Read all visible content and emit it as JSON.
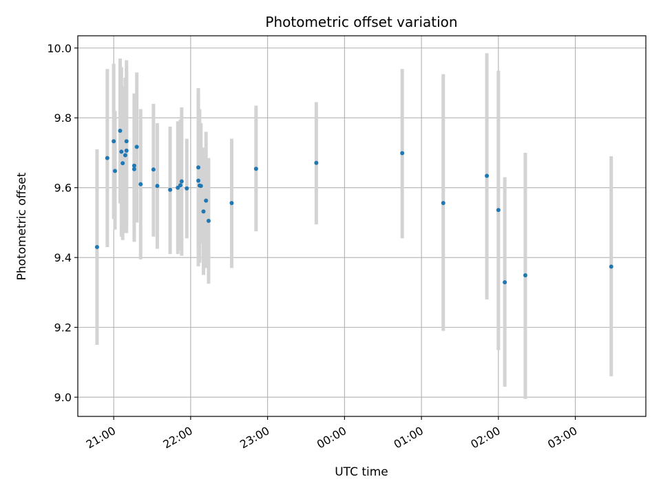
{
  "chart_data": {
    "type": "scatter",
    "title": "Photometric offset variation",
    "xlabel": "UTC time",
    "ylabel": "Photometric offset",
    "x_axis_type": "time",
    "xlim": [
      "20:32",
      "03:55"
    ],
    "ylim": [
      8.945,
      10.035
    ],
    "x_ticks": [
      "21:00",
      "22:00",
      "23:00",
      "00:00",
      "01:00",
      "02:00",
      "03:00"
    ],
    "y_ticks": [
      9.0,
      9.2,
      9.4,
      9.6,
      9.8,
      10.0
    ],
    "y_tick_labels": [
      "9.0",
      "9.2",
      "9.4",
      "9.6",
      "9.8",
      "10.0"
    ],
    "grid": true,
    "errorbars": true,
    "marker_color": "#1f77b4",
    "errorbar_color": "#d3d3d3",
    "series": [
      {
        "points": [
          {
            "x": "20:47",
            "y": 9.43,
            "ylow": 9.15,
            "yhigh": 9.71
          },
          {
            "x": "20:55",
            "y": 9.685,
            "ylow": 9.43,
            "yhigh": 9.94
          },
          {
            "x": "21:00",
            "y": 9.733,
            "ylow": 9.51,
            "yhigh": 9.955
          },
          {
            "x": "21:01",
            "y": 9.648,
            "ylow": 9.48,
            "yhigh": 9.82
          },
          {
            "x": "21:05",
            "y": 9.763,
            "ylow": 9.555,
            "yhigh": 9.97
          },
          {
            "x": "21:06",
            "y": 9.703,
            "ylow": 9.46,
            "yhigh": 9.945
          },
          {
            "x": "21:07",
            "y": 9.67,
            "ylow": 9.45,
            "yhigh": 9.89
          },
          {
            "x": "21:09",
            "y": 9.693,
            "ylow": 9.47,
            "yhigh": 9.915
          },
          {
            "x": "21:10",
            "y": 9.733,
            "ylow": 9.5,
            "yhigh": 9.965
          },
          {
            "x": "21:10",
            "y": 9.706,
            "ylow": 9.47,
            "yhigh": 9.94
          },
          {
            "x": "21:16",
            "y": 9.663,
            "ylow": 9.445,
            "yhigh": 9.87
          },
          {
            "x": "21:16",
            "y": 9.653,
            "ylow": 9.47,
            "yhigh": 9.86
          },
          {
            "x": "21:18",
            "y": 9.717,
            "ylow": 9.5,
            "yhigh": 9.93
          },
          {
            "x": "21:21",
            "y": 9.61,
            "ylow": 9.395,
            "yhigh": 9.825
          },
          {
            "x": "21:31",
            "y": 9.652,
            "ylow": 9.46,
            "yhigh": 9.84
          },
          {
            "x": "21:34",
            "y": 9.605,
            "ylow": 9.425,
            "yhigh": 9.785
          },
          {
            "x": "21:44",
            "y": 9.594,
            "ylow": 9.41,
            "yhigh": 9.775
          },
          {
            "x": "21:50",
            "y": 9.6,
            "ylow": 9.41,
            "yhigh": 9.79
          },
          {
            "x": "21:52",
            "y": 9.607,
            "ylow": 9.42,
            "yhigh": 9.795
          },
          {
            "x": "21:53",
            "y": 9.618,
            "ylow": 9.405,
            "yhigh": 9.83
          },
          {
            "x": "21:57",
            "y": 9.598,
            "ylow": 9.455,
            "yhigh": 9.74
          },
          {
            "x": "22:06",
            "y": 9.62,
            "ylow": 9.375,
            "yhigh": 9.865
          },
          {
            "x": "22:06",
            "y": 9.658,
            "ylow": 9.43,
            "yhigh": 9.885
          },
          {
            "x": "22:07",
            "y": 9.606,
            "ylow": 9.385,
            "yhigh": 9.825
          },
          {
            "x": "22:08",
            "y": 9.605,
            "ylow": 9.44,
            "yhigh": 9.785
          },
          {
            "x": "22:10",
            "y": 9.532,
            "ylow": 9.35,
            "yhigh": 9.715
          },
          {
            "x": "22:12",
            "y": 9.563,
            "ylow": 9.37,
            "yhigh": 9.76
          },
          {
            "x": "22:14",
            "y": 9.505,
            "ylow": 9.325,
            "yhigh": 9.685
          },
          {
            "x": "22:32",
            "y": 9.556,
            "ylow": 9.37,
            "yhigh": 9.74
          },
          {
            "x": "22:51",
            "y": 9.654,
            "ylow": 9.475,
            "yhigh": 9.835
          },
          {
            "x": "23:38",
            "y": 9.671,
            "ylow": 9.495,
            "yhigh": 9.845
          },
          {
            "x": "00:45",
            "y": 9.699,
            "ylow": 9.455,
            "yhigh": 9.94
          },
          {
            "x": "01:17",
            "y": 9.556,
            "ylow": 9.19,
            "yhigh": 9.925
          },
          {
            "x": "01:51",
            "y": 9.634,
            "ylow": 9.28,
            "yhigh": 9.985
          },
          {
            "x": "02:00",
            "y": 9.536,
            "ylow": 9.135,
            "yhigh": 9.935
          },
          {
            "x": "02:05",
            "y": 9.329,
            "ylow": 9.03,
            "yhigh": 9.63
          },
          {
            "x": "02:21",
            "y": 9.349,
            "ylow": 8.995,
            "yhigh": 9.7
          },
          {
            "x": "03:28",
            "y": 9.374,
            "ylow": 9.06,
            "yhigh": 9.69
          }
        ]
      }
    ]
  }
}
